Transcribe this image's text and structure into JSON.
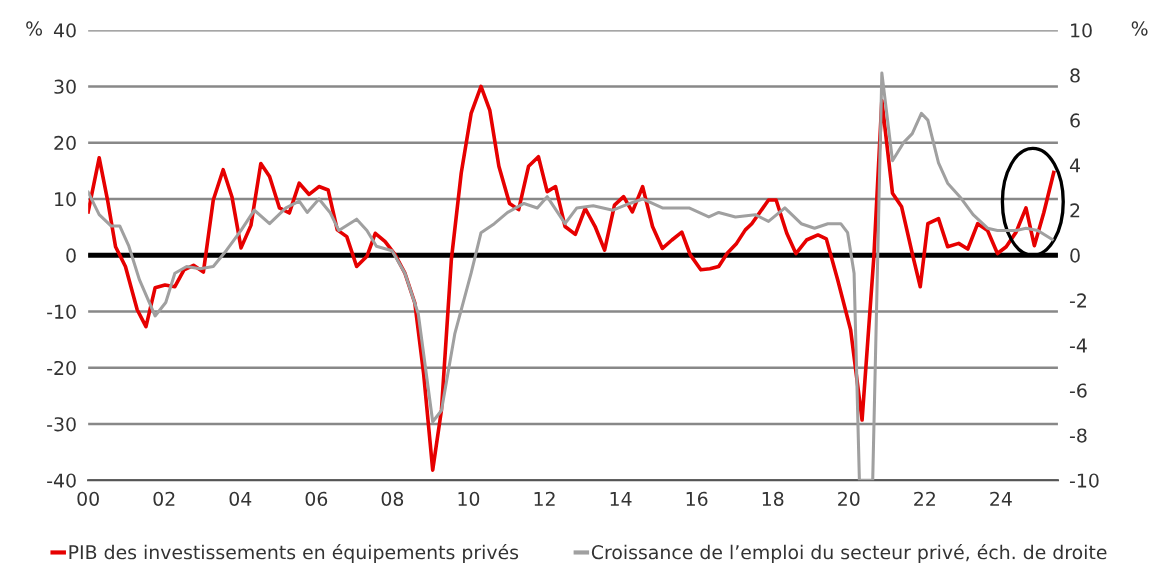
{
  "chart_data": {
    "type": "line",
    "ylabel": "%",
    "y2label": "%",
    "xlim": [
      2000,
      2025.5
    ],
    "xticks": [
      {
        "value": 2000,
        "label": "00"
      },
      {
        "value": 2002,
        "label": "02"
      },
      {
        "value": 2004,
        "label": "04"
      },
      {
        "value": 2006,
        "label": "06"
      },
      {
        "value": 2008,
        "label": "08"
      },
      {
        "value": 2010,
        "label": "10"
      },
      {
        "value": 2012,
        "label": "12"
      },
      {
        "value": 2014,
        "label": "14"
      },
      {
        "value": 2016,
        "label": "16"
      },
      {
        "value": 2018,
        "label": "18"
      },
      {
        "value": 2020,
        "label": "20"
      },
      {
        "value": 2022,
        "label": "22"
      },
      {
        "value": 2024,
        "label": "24"
      }
    ],
    "ylim": [
      -40,
      40
    ],
    "yticks": [
      -40,
      -30,
      -20,
      -10,
      0,
      10,
      20,
      30,
      40
    ],
    "y2lim": [
      -10,
      10
    ],
    "y2ticks": [
      -10,
      -8,
      -6,
      -4,
      -2,
      0,
      2,
      4,
      6,
      8,
      10
    ],
    "grid": "y",
    "legend": "bottom",
    "line_style": "solid",
    "ref_lines": [
      {
        "axis": "y",
        "value": 0,
        "color": "#000000"
      }
    ],
    "series": [
      {
        "name": "PIB des investissements en équipements privés",
        "color": "#e60000",
        "x": [
          2000.0,
          2000.29,
          2000.51,
          2000.72,
          2000.98,
          2001.29,
          2001.52,
          2001.76,
          2002.02,
          2002.28,
          2002.52,
          2002.77,
          2003.03,
          2003.29,
          2003.55,
          2003.78,
          2004.02,
          2004.28,
          2004.54,
          2004.77,
          2005.03,
          2005.29,
          2005.55,
          2005.81,
          2006.07,
          2006.31,
          2006.55,
          2006.8,
          2007.06,
          2007.33,
          2007.55,
          2007.81,
          2008.07,
          2008.33,
          2008.59,
          2008.82,
          2009.06,
          2009.29,
          2009.55,
          2009.81,
          2010.07,
          2010.33,
          2010.56,
          2010.8,
          2011.08,
          2011.32,
          2011.58,
          2011.84,
          2012.07,
          2012.29,
          2012.54,
          2012.81,
          2013.07,
          2013.33,
          2013.58,
          2013.84,
          2014.08,
          2014.31,
          2014.58,
          2014.84,
          2015.1,
          2015.35,
          2015.61,
          2015.83,
          2016.11,
          2016.35,
          2016.58,
          2016.81,
          2017.05,
          2017.28,
          2017.45,
          2017.89,
          2018.09,
          2018.37,
          2018.61,
          2018.89,
          2019.19,
          2019.41,
          2019.71,
          2020.05,
          2020.35,
          2020.66,
          2020.87,
          2021.15,
          2021.39,
          2021.67,
          2021.88,
          2022.08,
          2022.36,
          2022.6,
          2022.89,
          2023.13,
          2023.39,
          2023.65,
          2023.91,
          2024.14,
          2024.4,
          2024.66,
          2024.88,
          2025.13,
          2025.39
        ],
        "values": [
          7.7,
          17.3,
          9.8,
          1.5,
          -2,
          -9.7,
          -12.7,
          -5.8,
          -5.3,
          -5.6,
          -2.6,
          -1.8,
          -3,
          9.8,
          15.2,
          10.4,
          1.3,
          5.3,
          16.3,
          14,
          8.4,
          7.5,
          12.8,
          10.8,
          12.2,
          11.6,
          4.5,
          3.3,
          -2,
          -0.2,
          3.9,
          2.4,
          0.1,
          -3.2,
          -8.5,
          -21,
          -38.2,
          -27.5,
          -0.8,
          14.6,
          25.2,
          30,
          25.8,
          15.8,
          9.2,
          8.1,
          15.8,
          17.5,
          11.3,
          12.2,
          5.1,
          3.7,
          8.3,
          5.1,
          0.9,
          8.9,
          10.4,
          7.7,
          12.2,
          5.1,
          1.2,
          2.7,
          4.1,
          0.1,
          -2.6,
          -2.4,
          -2,
          0.4,
          2.1,
          4.5,
          5.6,
          9.8,
          9.8,
          3.9,
          0.3,
          2.7,
          3.6,
          2.9,
          -4.4,
          -13.3,
          -29.3,
          -0.3,
          27.5,
          11,
          8.6,
          0.3,
          -5.6,
          5.6,
          6.5,
          1.5,
          2.1,
          1.1,
          5.6,
          4.4,
          0.3,
          1.5,
          4.1,
          8.4,
          1.7,
          7.6,
          14.7
        ]
      },
      {
        "name": "Croissance de l’emploi du secteur privé, éch. de droite",
        "color": "#a0a0a0",
        "axis": "y2",
        "x": [
          2000.0,
          2000.29,
          2000.6,
          2000.83,
          2001.07,
          2001.35,
          2001.76,
          2002.04,
          2002.28,
          2002.59,
          2002.94,
          2003.29,
          2003.63,
          2004.02,
          2004.37,
          2004.77,
          2005.2,
          2005.55,
          2005.76,
          2006.07,
          2006.36,
          2006.59,
          2007.06,
          2007.33,
          2007.58,
          2007.99,
          2008.33,
          2008.68,
          2009.06,
          2009.29,
          2009.64,
          2010.07,
          2010.33,
          2010.68,
          2011.03,
          2011.46,
          2011.81,
          2012.07,
          2012.54,
          2012.85,
          2013.28,
          2013.8,
          2014.24,
          2014.58,
          2015.1,
          2015.8,
          2016.32,
          2016.58,
          2017.02,
          2017.54,
          2017.89,
          2018.32,
          2018.75,
          2019.1,
          2019.45,
          2019.79,
          2019.97,
          2020.14,
          2020.28,
          2020.63,
          2020.87,
          2021.15,
          2021.44,
          2021.67,
          2021.91,
          2022.08,
          2022.36,
          2022.6,
          2022.92,
          2023.27,
          2023.65,
          2023.91,
          2024.4,
          2024.66,
          2024.97,
          2025.35
        ],
        "values": [
          2.8,
          1.8,
          1.3,
          1.3,
          0.4,
          -1.1,
          -2.7,
          -2.1,
          -0.8,
          -0.5,
          -0.6,
          -0.5,
          0.2,
          1.1,
          2.0,
          1.4,
          2.1,
          2.4,
          1.9,
          2.5,
          1.9,
          1.1,
          1.6,
          1.1,
          0.4,
          0.2,
          -0.8,
          -2.6,
          -7.4,
          -6.9,
          -3.5,
          -0.8,
          1.0,
          1.4,
          1.9,
          2.3,
          2.1,
          2.6,
          1.4,
          2.1,
          2.2,
          2.0,
          2.3,
          2.5,
          2.1,
          2.1,
          1.7,
          1.9,
          1.7,
          1.8,
          1.5,
          2.1,
          1.4,
          1.2,
          1.4,
          1.4,
          1.0,
          -0.8,
          -10,
          -10,
          8.1,
          4.2,
          5.0,
          5.4,
          6.3,
          6.0,
          4.1,
          3.2,
          2.6,
          1.8,
          1.2,
          1.1,
          1.1,
          1.2,
          1.1,
          0.7
        ]
      }
    ]
  }
}
